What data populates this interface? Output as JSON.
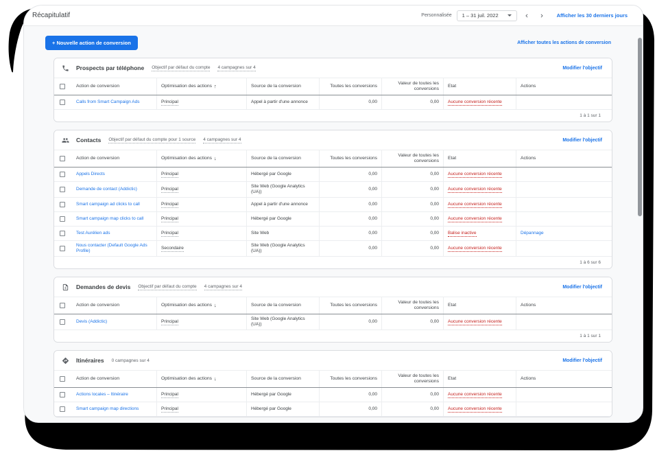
{
  "window": {
    "title": "Récapitulatif",
    "date_bar": {
      "mode_label": "Personnalisée",
      "range_value": "1 – 31 juil. 2022",
      "last30_link": "Afficher les 30 derniers jours"
    }
  },
  "toolbar": {
    "new_conversion_button": "+ Nouvelle action de conversion",
    "show_all_link": "Afficher toutes les actions de conversion"
  },
  "columns": {
    "action": "Action de conversion",
    "optimization": "Optimisation des actions",
    "source": "Source de la conversion",
    "all_conversions": "Toutes les conversions",
    "value_all_conversions": "Valeur de toutes les conversions",
    "state": "Etat",
    "actions": "Actions"
  },
  "edit_goal_label": "Modifier l'objectif",
  "colors": {
    "accent_blue": "#1a73e8",
    "error_red": "#c5221f",
    "card_border": "#dadce0",
    "backdrop_black": "#000000"
  },
  "cards": [
    {
      "icon": "phone-icon",
      "title": "Prospects par téléphone",
      "meta": [
        {
          "text": "Objectif par défaut du compte",
          "dotted": true
        },
        {
          "text": "4 campagnes sur 4",
          "dotted": true
        }
      ],
      "sort_arrow": "↑",
      "rows": [
        {
          "name": "Calls from Smart Campaign Ads",
          "optimization": "Principal",
          "source": "Appel à partir d'une annonce",
          "all_conversions": "0,00",
          "value": "0,00",
          "status": "Aucune conversion récente",
          "action": ""
        }
      ],
      "pagination": "1 à 1 sur 1"
    },
    {
      "icon": "people-icon",
      "title": "Contacts",
      "meta": [
        {
          "text": "Objectif par défaut du compte pour 1 source",
          "dotted": true
        },
        {
          "text": "4 campagnes sur 4",
          "dotted": true
        }
      ],
      "sort_arrow": "↓",
      "rows": [
        {
          "name": "Appels Directs",
          "optimization": "Principal",
          "source": "Hébergé par Google",
          "all_conversions": "0,00",
          "value": "0,00",
          "status": "Aucune conversion récente",
          "action": ""
        },
        {
          "name": "Demande de contact (Addictic)",
          "optimization": "Principal",
          "source": "Site Web (Google Analytics (UA))",
          "all_conversions": "0,00",
          "value": "0,00",
          "status": "Aucune conversion récente",
          "action": ""
        },
        {
          "name": "Smart campaign ad clicks to call",
          "optimization": "Principal",
          "source": "Appel à partir d'une annonce",
          "all_conversions": "0,00",
          "value": "0,00",
          "status": "Aucune conversion récente",
          "action": ""
        },
        {
          "name": "Smart campaign map clicks to call",
          "optimization": "Principal",
          "source": "Hébergé par Google",
          "all_conversions": "0,00",
          "value": "0,00",
          "status": "Aucune conversion récente",
          "action": ""
        },
        {
          "name": "Test Aurélien ads",
          "optimization": "Principal",
          "source": "Site Web",
          "all_conversions": "0,00",
          "value": "0,00",
          "status": "Balise inactive",
          "action": "Dépannage"
        },
        {
          "name": "Nous contacter (Default Google Ads Profile)",
          "optimization": "Secondaire",
          "source": "Site Web (Google Analytics (UA))",
          "all_conversions": "0,00",
          "value": "0,00",
          "status": "Aucune conversion récente",
          "action": ""
        }
      ],
      "pagination": "1 à 6 sur 6"
    },
    {
      "icon": "quote-icon",
      "title": "Demandes de devis",
      "meta": [
        {
          "text": "Objectif par défaut du compte",
          "dotted": true
        },
        {
          "text": "4 campagnes sur 4",
          "dotted": true
        }
      ],
      "sort_arrow": "↓",
      "rows": [
        {
          "name": "Devis (Addictic)",
          "optimization": "Principal",
          "source": "Site Web (Google Analytics (UA))",
          "all_conversions": "0,00",
          "value": "0,00",
          "status": "Aucune conversion récente",
          "action": ""
        }
      ],
      "pagination": "1 à 1 sur 1"
    },
    {
      "icon": "directions-icon",
      "title": "Itinéraires",
      "meta": [
        {
          "text": "0 campagnes sur 4",
          "dotted": false
        }
      ],
      "sort_arrow": "↓",
      "rows": [
        {
          "name": "Actions locales – Itinéraire",
          "optimization": "Principal",
          "source": "Hébergé par Google",
          "all_conversions": "0,00",
          "value": "0,00",
          "status": "Aucune conversion récente",
          "action": ""
        },
        {
          "name": "Smart campaign map directions",
          "optimization": "Principal",
          "source": "Hébergé par Google",
          "all_conversions": "0,00",
          "value": "0,00",
          "status": "Aucune conversion récente",
          "action": ""
        }
      ],
      "pagination": ""
    }
  ]
}
